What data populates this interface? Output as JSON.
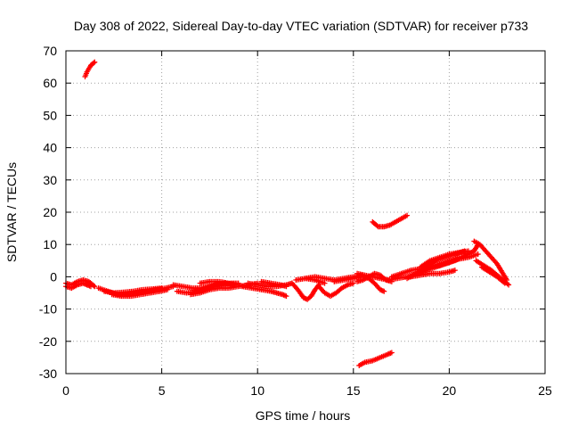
{
  "chart_data": {
    "type": "scatter",
    "title": "Day 308 of 2022, Sidereal Day-to-day VTEC variation (SDTVAR) for receiver p733",
    "xlabel": "GPS time / hours",
    "ylabel": "SDTVAR / TECUs",
    "xlim": [
      0,
      25
    ],
    "ylim": [
      -30,
      70
    ],
    "xticks": [
      0,
      5,
      10,
      15,
      20,
      25
    ],
    "yticks": [
      -30,
      -20,
      -10,
      0,
      10,
      20,
      30,
      40,
      50,
      60,
      70
    ],
    "grid": true,
    "marker": "plus",
    "color": "#ff0000",
    "series": [
      {
        "name": "arc-1",
        "points": [
          [
            0.0,
            -2
          ],
          [
            0.3,
            -2.5
          ],
          [
            0.6,
            -1.5
          ],
          [
            0.9,
            -1
          ],
          [
            1.2,
            -1.5
          ],
          [
            1.4,
            -2.5
          ],
          [
            1.5,
            -3
          ]
        ]
      },
      {
        "name": "arc-2",
        "points": [
          [
            0.0,
            -3
          ],
          [
            0.3,
            -3.5
          ],
          [
            0.6,
            -2.5
          ],
          [
            0.9,
            -2
          ],
          [
            1.1,
            -2.5
          ],
          [
            1.3,
            -3
          ]
        ]
      },
      {
        "name": "arc-3",
        "points": [
          [
            1.7,
            -3.5
          ],
          [
            2.2,
            -4.5
          ],
          [
            2.7,
            -5.5
          ],
          [
            3.2,
            -5.5
          ],
          [
            3.7,
            -5
          ],
          [
            4.2,
            -4.5
          ],
          [
            4.7,
            -4
          ],
          [
            5.2,
            -3.5
          ],
          [
            5.6,
            -3
          ]
        ]
      },
      {
        "name": "arc-4",
        "points": [
          [
            2.0,
            -4.5
          ],
          [
            2.5,
            -5
          ],
          [
            3.0,
            -4.8
          ],
          [
            3.5,
            -4.5
          ],
          [
            4.0,
            -4
          ],
          [
            4.5,
            -3.8
          ],
          [
            5.0,
            -3.5
          ]
        ]
      },
      {
        "name": "arc-5",
        "points": [
          [
            2.4,
            -5.5
          ],
          [
            2.9,
            -6
          ],
          [
            3.4,
            -6
          ],
          [
            3.9,
            -5.5
          ],
          [
            4.4,
            -5
          ],
          [
            4.9,
            -4.5
          ],
          [
            5.3,
            -4
          ]
        ]
      },
      {
        "name": "arc-6",
        "points": [
          [
            5.6,
            -2.5
          ],
          [
            6.1,
            -3
          ],
          [
            6.6,
            -3.5
          ],
          [
            7.1,
            -3.5
          ],
          [
            7.6,
            -3
          ],
          [
            8.1,
            -2.5
          ],
          [
            8.6,
            -2
          ],
          [
            9.0,
            -2
          ]
        ]
      },
      {
        "name": "arc-7",
        "points": [
          [
            5.8,
            -4.5
          ],
          [
            6.3,
            -5
          ],
          [
            6.8,
            -4.5
          ],
          [
            7.3,
            -3.5
          ],
          [
            7.8,
            -2.5
          ],
          [
            8.3,
            -2
          ],
          [
            8.8,
            -2.5
          ]
        ]
      },
      {
        "name": "arc-8",
        "points": [
          [
            6.5,
            -5.5
          ],
          [
            7.0,
            -5
          ],
          [
            7.5,
            -4
          ],
          [
            8.0,
            -3.5
          ],
          [
            8.5,
            -3.5
          ],
          [
            9.0,
            -3
          ],
          [
            9.5,
            -2.5
          ],
          [
            10.0,
            -2
          ]
        ]
      },
      {
        "name": "arc-9",
        "points": [
          [
            7.0,
            -2
          ],
          [
            7.5,
            -1.5
          ],
          [
            8.0,
            -1.5
          ],
          [
            8.5,
            -2
          ],
          [
            9.0,
            -2.5
          ]
        ]
      },
      {
        "name": "arc-10",
        "points": [
          [
            9.2,
            -3
          ],
          [
            9.7,
            -3.5
          ],
          [
            10.2,
            -4
          ],
          [
            10.7,
            -4.5
          ],
          [
            11.0,
            -5
          ],
          [
            11.3,
            -5.5
          ],
          [
            11.5,
            -6
          ]
        ]
      },
      {
        "name": "arc-11",
        "points": [
          [
            9.5,
            -2
          ],
          [
            10.0,
            -2.5
          ],
          [
            10.5,
            -3
          ],
          [
            11.0,
            -3
          ],
          [
            11.5,
            -2.5
          ],
          [
            11.8,
            -2
          ]
        ]
      },
      {
        "name": "arc-12",
        "points": [
          [
            10.2,
            -1.5
          ],
          [
            10.7,
            -2
          ],
          [
            11.2,
            -2.5
          ],
          [
            11.5,
            -3
          ]
        ]
      },
      {
        "name": "arc-13",
        "points": [
          [
            11.8,
            -2
          ],
          [
            12.1,
            -4
          ],
          [
            12.4,
            -6.5
          ],
          [
            12.6,
            -7
          ],
          [
            12.8,
            -6
          ],
          [
            13.0,
            -4
          ],
          [
            13.2,
            -2.5
          ]
        ]
      },
      {
        "name": "arc-14",
        "points": [
          [
            12.0,
            -1
          ],
          [
            12.5,
            -0.5
          ],
          [
            13.0,
            -1
          ],
          [
            13.5,
            -2
          ]
        ]
      },
      {
        "name": "arc-15",
        "points": [
          [
            13.2,
            -3
          ],
          [
            13.5,
            -5
          ],
          [
            13.8,
            -6
          ],
          [
            14.1,
            -5
          ],
          [
            14.4,
            -3.5
          ],
          [
            14.7,
            -2.5
          ],
          [
            15.0,
            -2
          ]
        ]
      },
      {
        "name": "arc-16",
        "points": [
          [
            12.5,
            -0.5
          ],
          [
            13.0,
            0
          ],
          [
            13.5,
            -0.5
          ],
          [
            14.0,
            -1
          ],
          [
            14.5,
            -0.5
          ],
          [
            15.0,
            0
          ],
          [
            15.5,
            0.5
          ]
        ]
      },
      {
        "name": "arc-17",
        "points": [
          [
            14.0,
            -1.5
          ],
          [
            14.5,
            -1
          ],
          [
            15.0,
            -0.5
          ],
          [
            15.5,
            0
          ],
          [
            15.8,
            -0.5
          ],
          [
            16.1,
            -2
          ],
          [
            16.4,
            -4
          ],
          [
            16.6,
            -4.5
          ]
        ]
      },
      {
        "name": "arc-18",
        "points": [
          [
            15.2,
            -1.5
          ],
          [
            15.5,
            -1
          ],
          [
            15.8,
            0
          ],
          [
            16.1,
            1
          ],
          [
            16.4,
            0.5
          ],
          [
            16.7,
            -1
          ],
          [
            17.0,
            -1.5
          ]
        ]
      },
      {
        "name": "arc-19",
        "points": [
          [
            15.2,
            1
          ],
          [
            15.6,
            0.5
          ],
          [
            16.0,
            0
          ],
          [
            16.4,
            -0.5
          ],
          [
            16.8,
            -1
          ]
        ]
      },
      {
        "name": "arc-20",
        "points": [
          [
            16.8,
            -1
          ],
          [
            17.3,
            -0.5
          ],
          [
            17.8,
            0
          ],
          [
            18.3,
            1
          ],
          [
            18.8,
            2
          ],
          [
            19.3,
            3
          ],
          [
            19.8,
            4
          ],
          [
            20.3,
            5
          ],
          [
            20.8,
            6.5
          ],
          [
            21.3,
            8
          ],
          [
            21.5,
            10
          ]
        ]
      },
      {
        "name": "arc-21",
        "points": [
          [
            17.0,
            0
          ],
          [
            17.5,
            1
          ],
          [
            18.0,
            2
          ],
          [
            18.5,
            2.5
          ],
          [
            19.0,
            3
          ],
          [
            19.5,
            4
          ],
          [
            20.0,
            5
          ],
          [
            20.5,
            6
          ]
        ]
      },
      {
        "name": "arc-22",
        "points": [
          [
            17.8,
            -0.5
          ],
          [
            18.3,
            1
          ],
          [
            18.8,
            3
          ],
          [
            19.3,
            5
          ],
          [
            19.8,
            6
          ],
          [
            20.3,
            7
          ],
          [
            20.8,
            8
          ]
        ]
      },
      {
        "name": "arc-23",
        "points": [
          [
            18.5,
            3
          ],
          [
            19.0,
            5
          ],
          [
            19.5,
            6
          ],
          [
            20.0,
            7
          ],
          [
            20.5,
            7.5
          ],
          [
            21.0,
            8
          ]
        ]
      },
      {
        "name": "arc-24",
        "points": [
          [
            18.0,
            0
          ],
          [
            18.5,
            0.5
          ],
          [
            19.0,
            1
          ],
          [
            19.5,
            1
          ],
          [
            20.0,
            1.5
          ],
          [
            20.3,
            2
          ]
        ]
      },
      {
        "name": "arc-25",
        "points": [
          [
            18.5,
            2
          ],
          [
            19.0,
            3
          ],
          [
            19.5,
            3.5
          ],
          [
            20.0,
            4.5
          ],
          [
            20.5,
            5.5
          ],
          [
            21.0,
            6
          ],
          [
            21.5,
            7
          ]
        ]
      },
      {
        "name": "arc-26",
        "points": [
          [
            21.3,
            11
          ],
          [
            21.6,
            10
          ],
          [
            21.9,
            8
          ],
          [
            22.2,
            6
          ],
          [
            22.5,
            4
          ],
          [
            22.8,
            1
          ],
          [
            23.0,
            -1
          ]
        ]
      },
      {
        "name": "arc-27",
        "points": [
          [
            21.4,
            5
          ],
          [
            21.8,
            3.5
          ],
          [
            22.2,
            2
          ],
          [
            22.6,
            0
          ],
          [
            22.9,
            -1.5
          ],
          [
            23.1,
            -2.5
          ]
        ]
      },
      {
        "name": "arc-28",
        "points": [
          [
            21.7,
            3
          ],
          [
            22.1,
            1.5
          ],
          [
            22.5,
            0
          ],
          [
            22.9,
            -2
          ]
        ]
      },
      {
        "name": "arc-29",
        "points": [
          [
            1.0,
            62
          ],
          [
            1.1,
            63.5
          ],
          [
            1.2,
            64.5
          ],
          [
            1.3,
            65.5
          ],
          [
            1.4,
            66
          ],
          [
            1.5,
            66.5
          ]
        ]
      },
      {
        "name": "arc-30",
        "points": [
          [
            16.0,
            17
          ],
          [
            16.3,
            15.5
          ],
          [
            16.6,
            15.5
          ],
          [
            16.9,
            16
          ],
          [
            17.2,
            17
          ],
          [
            17.5,
            18
          ],
          [
            17.8,
            19
          ]
        ]
      },
      {
        "name": "arc-31",
        "points": [
          [
            15.3,
            -27.5
          ],
          [
            15.6,
            -26.5
          ],
          [
            16.0,
            -26
          ],
          [
            16.4,
            -25
          ],
          [
            16.8,
            -24
          ],
          [
            17.0,
            -23.5
          ]
        ]
      }
    ]
  }
}
